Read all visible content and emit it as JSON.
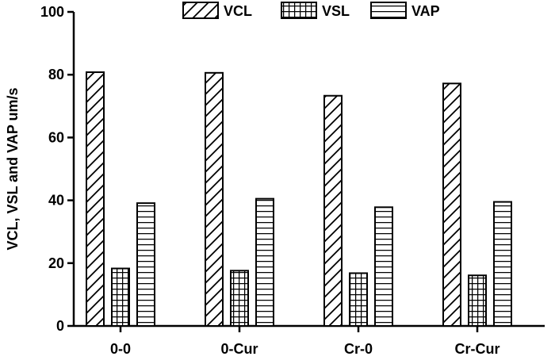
{
  "chart_data": {
    "type": "bar",
    "categories": [
      "0-0",
      "0-Cur",
      "Cr-0",
      "Cr-Cur"
    ],
    "series": [
      {
        "name": "VCL",
        "values": [
          80.8,
          80.6,
          73.3,
          77.2
        ],
        "pattern": "diagonal"
      },
      {
        "name": "VSL",
        "values": [
          18.3,
          17.6,
          16.8,
          16.1
        ],
        "pattern": "grid"
      },
      {
        "name": "VAP",
        "values": [
          39.1,
          40.5,
          37.8,
          39.5
        ],
        "pattern": "horizontal"
      }
    ],
    "title": "",
    "xlabel": "",
    "ylabel": "VCL, VSL and VAP um/s",
    "ylim": [
      0,
      100
    ],
    "yticks": [
      0,
      20,
      40,
      60,
      80,
      100
    ],
    "grid": false,
    "legend_position": "top"
  }
}
